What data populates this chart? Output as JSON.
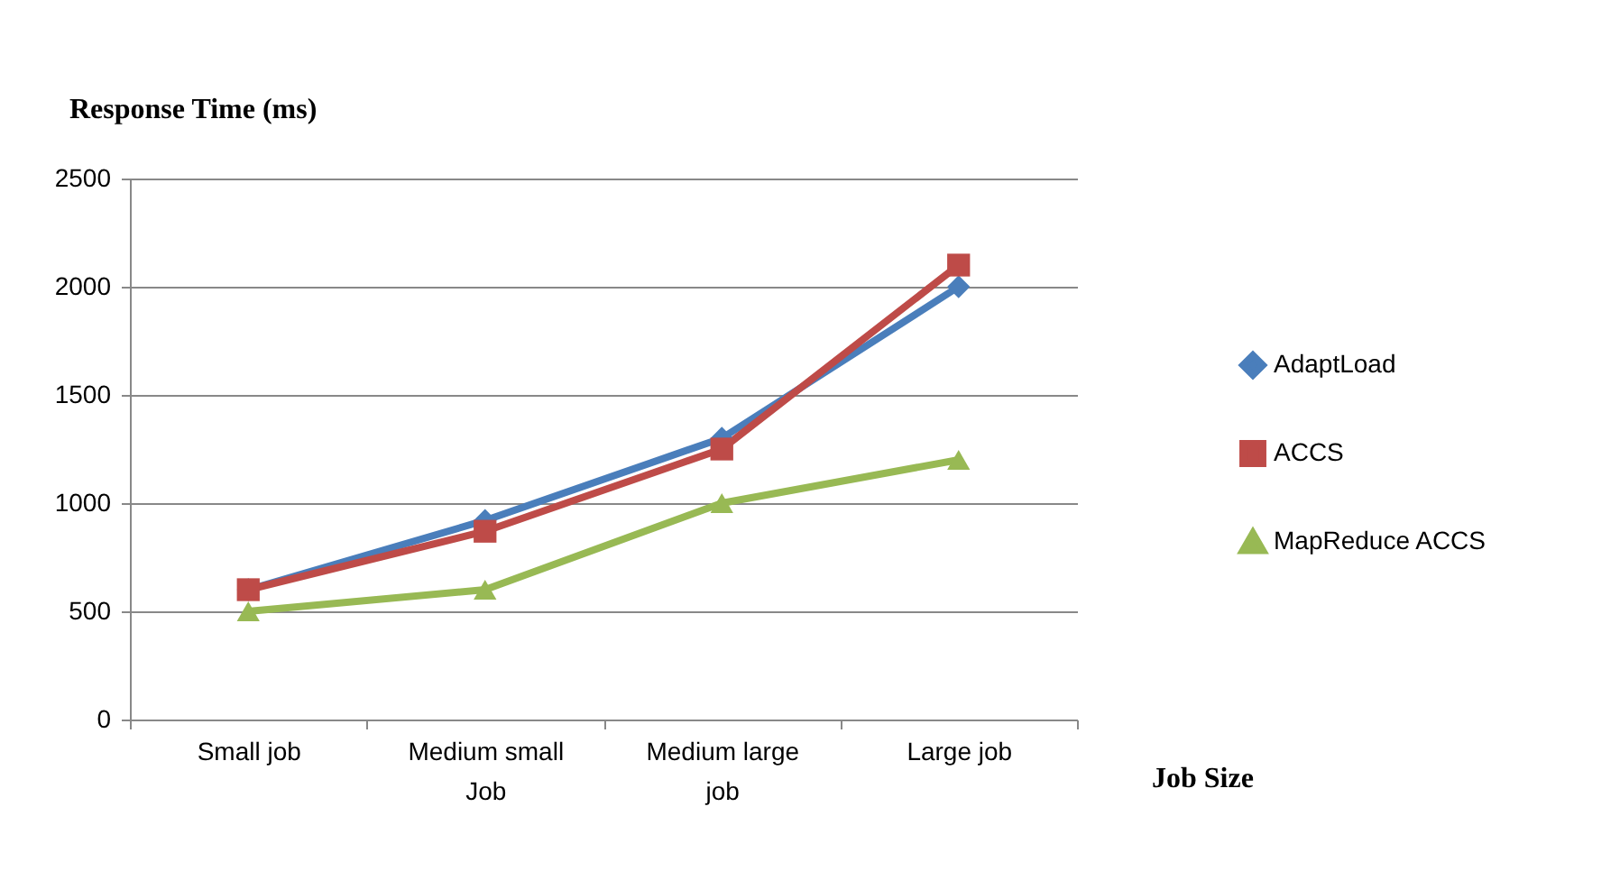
{
  "chart_data": {
    "type": "line",
    "xlabel": "Job Size",
    "ylabel": "Response Time (ms)",
    "categories": [
      "Small job",
      "Medium small Job",
      "Medium large job",
      "Large job"
    ],
    "series": [
      {
        "name": "AdaptLoad",
        "color": "#4a7ebb",
        "marker": "diamond",
        "values": [
          600,
          920,
          1300,
          2000
        ]
      },
      {
        "name": "ACCS",
        "color": "#be4b48",
        "marker": "square",
        "values": [
          600,
          870,
          1250,
          2100
        ]
      },
      {
        "name": "MapReduce ACCS",
        "color": "#98b954",
        "marker": "triangle",
        "values": [
          500,
          600,
          1000,
          1200
        ]
      }
    ],
    "ylim": [
      0,
      2500
    ],
    "yticks": [
      0,
      500,
      1000,
      1500,
      2000,
      2500
    ],
    "grid": "y",
    "legend": "right"
  }
}
